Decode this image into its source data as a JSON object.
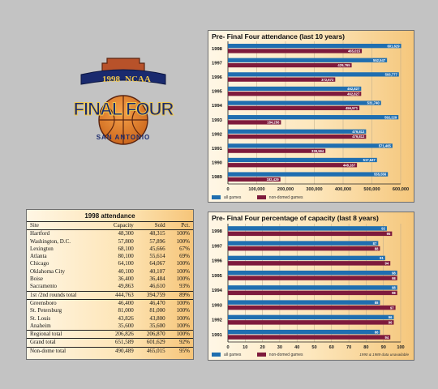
{
  "logo": {
    "year": "1998",
    "org": "NCAA",
    "name": "FINAL FOUR",
    "city": "SAN ANTONIO",
    "colors": {
      "navy": "#1a2a6e",
      "orange": "#e3821d",
      "brick": "#b8522a",
      "gold": "#f2c84b"
    }
  },
  "attendance_table": {
    "title": "1998 attendance",
    "columns": [
      "Site",
      "Capacity",
      "Sold",
      "Pct."
    ],
    "rows": [
      {
        "site": "Hartford",
        "capacity": "48,300",
        "sold": "48,315",
        "pct": "100%"
      },
      {
        "site": "Washington, D.C.",
        "capacity": "57,800",
        "sold": "57,896",
        "pct": "100%"
      },
      {
        "site": "Lexington",
        "capacity": "68,100",
        "sold": "45,666",
        "pct": "67%"
      },
      {
        "site": "Atlanta",
        "capacity": "80,100",
        "sold": "55,614",
        "pct": "69%"
      },
      {
        "site": "Chicago",
        "capacity": "64,100",
        "sold": "64,067",
        "pct": "100%"
      },
      {
        "site": "Oklahoma City",
        "capacity": "40,100",
        "sold": "40,107",
        "pct": "100%"
      },
      {
        "site": "Boise",
        "capacity": "36,400",
        "sold": "36,484",
        "pct": "100%"
      },
      {
        "site": "Sacramento",
        "capacity": "49,863",
        "sold": "46,610",
        "pct": "93%"
      },
      {
        "site": "1st /2nd rounds total",
        "capacity": "444,763",
        "sold": "394,759",
        "pct": "89%",
        "subtotal": true
      },
      {
        "site": "Greensboro",
        "capacity": "46,400",
        "sold": "46,470",
        "pct": "100%"
      },
      {
        "site": "St. Petersburg",
        "capacity": "81,000",
        "sold": "81,000",
        "pct": "100%"
      },
      {
        "site": "St. Louis",
        "capacity": "43,826",
        "sold": "43,800",
        "pct": "100%"
      },
      {
        "site": "Anaheim",
        "capacity": "35,600",
        "sold": "35,600",
        "pct": "100%"
      },
      {
        "site": "Regional total",
        "capacity": "206,826",
        "sold": "206,870",
        "pct": "100%",
        "subtotal": true
      },
      {
        "site": "Grand total",
        "capacity": "651,589",
        "sold": "601,629",
        "pct": "92%",
        "subtotal": true
      },
      {
        "site": "Non-dome total",
        "capacity": "490,489",
        "sold": "465,015",
        "pct": "95%"
      }
    ]
  },
  "legend": {
    "all": "all games",
    "non_domed": "non-domed games"
  },
  "footnote": "1990 & 1989 data unavailable",
  "colors": {
    "all_games": "#1f6eb0",
    "non_domed": "#7e1a3c"
  },
  "chart_data": [
    {
      "type": "bar",
      "orientation": "horizontal",
      "title": "Pre- Final Four attendance (last 10 years)",
      "categories": [
        "1998",
        "1997",
        "1996",
        "1995",
        "1994",
        "1993",
        "1992",
        "1991",
        "1990",
        "1989"
      ],
      "series": [
        {
          "name": "all games",
          "values": [
            601629,
            552547,
            593777,
            462827,
            531740,
            592229,
            479812,
            571465,
            517647,
            555556
          ],
          "labels": [
            "601,629",
            "552,547",
            "593,777",
            "462,827",
            "531,740",
            "592,229",
            "479,812",
            "571,465",
            "517,647",
            "555,556"
          ]
        },
        {
          "name": "non-domed games",
          "values": [
            465015,
            429765,
            372672,
            462827,
            456571,
            184256,
            479812,
            338594,
            448167,
            182429
          ],
          "labels": [
            "465,015",
            "429,765",
            "372,672",
            "462,827",
            "456,571",
            "184,256",
            "479,812",
            "338,594",
            "448,167",
            "182,429"
          ]
        }
      ],
      "xlim": [
        0,
        600000
      ],
      "xticks": [
        "0",
        "100,000",
        "200,000",
        "300,000",
        "400,000",
        "500,000",
        "600,000"
      ],
      "xticks_values": [
        0,
        100000,
        200000,
        300000,
        400000,
        500000,
        600000
      ],
      "grid": true
    },
    {
      "type": "bar",
      "orientation": "horizontal",
      "title": "Pre- Final Four percentage of capacity (last 8 years)",
      "categories": [
        "1998",
        "1997",
        "1996",
        "1995",
        "1994",
        "1993",
        "1992",
        "1991"
      ],
      "series": [
        {
          "name": "all games",
          "values": [
            92,
            87,
            91,
            98,
            98,
            88,
            96,
            88
          ],
          "labels": [
            "92",
            "87",
            "91",
            "98",
            "98",
            "88",
            "96",
            "88"
          ]
        },
        {
          "name": "non-domed games",
          "values": [
            95,
            88,
            94,
            98,
            98,
            97,
            96,
            94
          ],
          "labels": [
            "95",
            "88",
            "94",
            "98",
            "98",
            "97",
            "96",
            "94"
          ]
        }
      ],
      "xlim": [
        0,
        100
      ],
      "xticks": [
        "0",
        "10",
        "20",
        "30",
        "40",
        "50",
        "60",
        "70",
        "80",
        "90",
        "100"
      ],
      "xticks_values": [
        0,
        10,
        20,
        30,
        40,
        50,
        60,
        70,
        80,
        90,
        100
      ],
      "grid": true
    }
  ]
}
